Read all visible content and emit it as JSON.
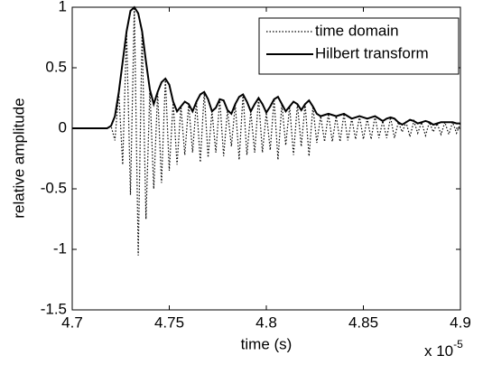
{
  "chart_data": {
    "type": "line",
    "x_label": "time (s)",
    "y_label": "relative amplitude",
    "x_multiplier": {
      "base": "x 10",
      "exponent": "-5"
    },
    "xlim": [
      4.7,
      4.9
    ],
    "xticks": [
      4.7,
      4.75,
      4.8,
      4.85,
      4.9
    ],
    "ylim": [
      -1.5,
      1
    ],
    "yticks": [
      -1.5,
      -1,
      -0.5,
      0,
      0.5,
      1
    ],
    "grid": false,
    "legend": "upper right",
    "x": [
      4.7,
      4.702,
      4.704,
      4.706,
      4.708,
      4.71,
      4.712,
      4.714,
      4.716,
      4.718,
      4.72,
      4.722,
      4.724,
      4.726,
      4.728,
      4.73,
      4.732,
      4.734,
      4.736,
      4.738,
      4.74,
      4.742,
      4.744,
      4.746,
      4.748,
      4.75,
      4.752,
      4.754,
      4.756,
      4.758,
      4.76,
      4.762,
      4.764,
      4.766,
      4.768,
      4.77,
      4.772,
      4.774,
      4.776,
      4.778,
      4.78,
      4.782,
      4.784,
      4.786,
      4.788,
      4.79,
      4.792,
      4.794,
      4.796,
      4.798,
      4.8,
      4.802,
      4.804,
      4.806,
      4.808,
      4.81,
      4.812,
      4.814,
      4.816,
      4.818,
      4.82,
      4.822,
      4.824,
      4.826,
      4.828,
      4.83,
      4.832,
      4.834,
      4.836,
      4.838,
      4.84,
      4.842,
      4.844,
      4.846,
      4.848,
      4.85,
      4.852,
      4.854,
      4.856,
      4.858,
      4.86,
      4.862,
      4.864,
      4.866,
      4.868,
      4.87,
      4.872,
      4.874,
      4.876,
      4.878,
      4.88,
      4.882,
      4.884,
      4.886,
      4.888,
      4.89,
      4.892,
      4.894,
      4.896,
      4.898,
      4.9
    ],
    "series": [
      {
        "name": "time domain",
        "color": "#000000",
        "style": "dotted",
        "values": [
          0,
          0,
          0,
          0,
          0,
          0,
          0,
          0,
          0,
          0,
          0.02,
          -0.1,
          0.3,
          -0.3,
          0.8,
          -0.55,
          1.0,
          -1.05,
          0.8,
          -0.75,
          0.32,
          -0.5,
          0.3,
          -0.45,
          0.41,
          -0.35,
          0.22,
          -0.3,
          0.18,
          -0.22,
          0.2,
          -0.2,
          0.22,
          -0.28,
          0.3,
          -0.24,
          0.14,
          -0.2,
          0.24,
          -0.23,
          0.15,
          -0.15,
          0.2,
          -0.26,
          0.28,
          -0.22,
          0.14,
          -0.2,
          0.25,
          -0.2,
          0.13,
          -0.18,
          0.24,
          -0.26,
          0.2,
          -0.14,
          0.18,
          -0.22,
          0.2,
          -0.15,
          0.2,
          -0.23,
          0.18,
          -0.12,
          0.1,
          -0.11,
          0.12,
          -0.11,
          0.1,
          -0.11,
          0.12,
          -0.1,
          0.08,
          -0.09,
          0.1,
          -0.09,
          0.08,
          -0.09,
          0.1,
          -0.08,
          0.06,
          -0.08,
          0.09,
          -0.08,
          0.05,
          -0.03,
          0.05,
          -0.07,
          0.06,
          -0.04,
          0.05,
          -0.06,
          0.05,
          -0.03,
          0.04,
          -0.05,
          0.05,
          -0.05,
          0.05,
          -0.04,
          0.04
        ]
      },
      {
        "name": "Hilbert transform",
        "color": "#000000",
        "style": "solid",
        "values": [
          0,
          0,
          0,
          0,
          0,
          0,
          0,
          0,
          0,
          0,
          0.02,
          0.1,
          0.3,
          0.55,
          0.8,
          0.97,
          1.0,
          0.95,
          0.8,
          0.55,
          0.32,
          0.2,
          0.3,
          0.38,
          0.41,
          0.36,
          0.22,
          0.14,
          0.18,
          0.22,
          0.2,
          0.14,
          0.22,
          0.28,
          0.3,
          0.24,
          0.14,
          0.17,
          0.24,
          0.23,
          0.15,
          0.12,
          0.2,
          0.26,
          0.28,
          0.22,
          0.14,
          0.2,
          0.25,
          0.2,
          0.13,
          0.18,
          0.24,
          0.26,
          0.2,
          0.14,
          0.18,
          0.22,
          0.2,
          0.15,
          0.2,
          0.23,
          0.18,
          0.12,
          0.1,
          0.11,
          0.12,
          0.11,
          0.1,
          0.11,
          0.12,
          0.1,
          0.08,
          0.09,
          0.1,
          0.09,
          0.08,
          0.09,
          0.1,
          0.08,
          0.06,
          0.08,
          0.09,
          0.08,
          0.05,
          0.03,
          0.05,
          0.07,
          0.06,
          0.04,
          0.05,
          0.06,
          0.05,
          0.03,
          0.04,
          0.05,
          0.05,
          0.05,
          0.05,
          0.04,
          0.04
        ]
      }
    ]
  }
}
